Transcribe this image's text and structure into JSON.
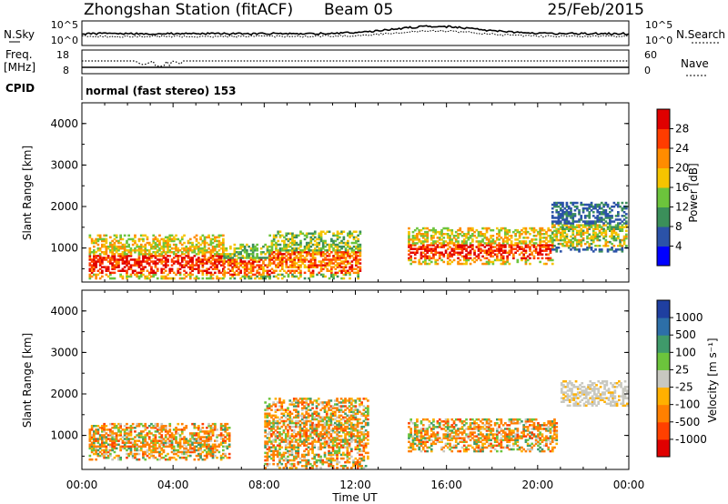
{
  "header": {
    "station": "Zhongshan Station (fitACF)",
    "beam": "Beam 05",
    "date": "25/Feb/2015"
  },
  "sky_panel": {
    "left_label": "N.Sky",
    "right_label": "N.Search",
    "y_ticks": [
      "10^5",
      "10^0"
    ]
  },
  "freq_panel": {
    "left_label_line1": "Freq.",
    "left_label_line2": "[MHz]",
    "left_ticks": [
      "18",
      "8"
    ],
    "right_label": "Nave",
    "right_ticks": [
      "60",
      "0"
    ]
  },
  "cpid": {
    "label": "CPID",
    "mode_text": "normal (fast stereo) 153"
  },
  "power_panel": {
    "ylabel": "Slant Range [km]",
    "yticks": [
      "4000",
      "3000",
      "2000",
      "1000"
    ],
    "colorbar_label": "Power [dB]",
    "colorbar_ticks": [
      "28",
      "24",
      "20",
      "16",
      "12",
      "8",
      "4"
    ],
    "colorbar_colors": [
      "#0000ff",
      "#2b52a8",
      "#3b8f5a",
      "#6cc43c",
      "#f5c400",
      "#ff8c00",
      "#ff3c00",
      "#e00000"
    ]
  },
  "velocity_panel": {
    "ylabel": "Slant Range [km]",
    "yticks": [
      "4000",
      "3000",
      "2000",
      "1000"
    ],
    "colorbar_label": "Velocity [m s⁻¹]",
    "colorbar_ticks": [
      "1000",
      "500",
      "100",
      "25",
      "-25",
      "-100",
      "-500",
      "-1000"
    ],
    "colorbar_colors": [
      "#1f3fa0",
      "#2d6fa8",
      "#3f9a6a",
      "#6cc43c",
      "#c8c8c0",
      "#ffb000",
      "#ff8000",
      "#ff4000",
      "#e00000"
    ]
  },
  "xaxis": {
    "ticks": [
      "00:00",
      "04:00",
      "08:00",
      "12:00",
      "16:00",
      "20:00",
      "00:00"
    ],
    "label": "Time UT"
  },
  "chart_data": {
    "type": "heatmap",
    "x_range_hours_ut": [
      0,
      24
    ],
    "y_range_km": [
      180,
      4500
    ],
    "power_scale_db": [
      0,
      30
    ],
    "velocity_scale_ms": [
      -1000,
      1000
    ],
    "power_echo_regions": [
      {
        "t0": 0.3,
        "t1": 6.2,
        "r0": 250,
        "r1": 1300,
        "level": "high"
      },
      {
        "t0": 6.2,
        "t1": 8.2,
        "r0": 250,
        "r1": 1100,
        "level": "medium"
      },
      {
        "t0": 8.2,
        "t1": 12.2,
        "r0": 250,
        "r1": 1400,
        "level": "medium"
      },
      {
        "t0": 14.3,
        "t1": 20.6,
        "r0": 600,
        "r1": 1500,
        "level": "high"
      },
      {
        "t0": 20.6,
        "t1": 23.9,
        "r0": 900,
        "r1": 2100,
        "level": "low"
      }
    ],
    "velocity_echo_regions": [
      {
        "t0": 0.3,
        "t1": 6.5,
        "r0": 400,
        "r1": 1300,
        "sign": "negative"
      },
      {
        "t0": 8.0,
        "t1": 12.5,
        "r0": 200,
        "r1": 1900,
        "sign": "negative"
      },
      {
        "t0": 14.3,
        "t1": 20.8,
        "r0": 600,
        "r1": 1400,
        "sign": "negative"
      },
      {
        "t0": 21.0,
        "t1": 23.9,
        "r0": 1700,
        "r1": 2300,
        "sign": "near-zero"
      }
    ]
  }
}
